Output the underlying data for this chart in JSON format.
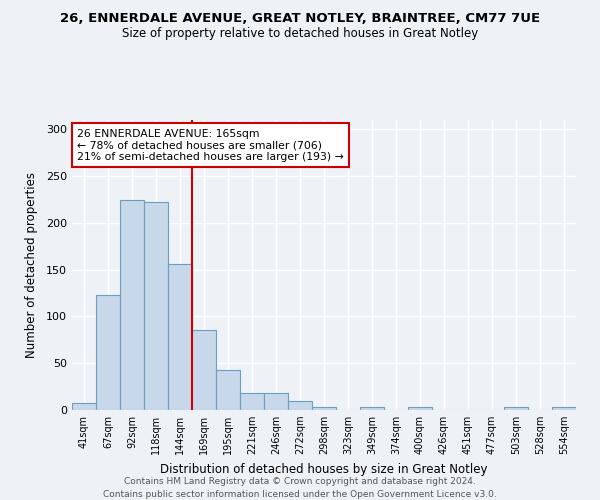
{
  "title_line1": "26, ENNERDALE AVENUE, GREAT NOTLEY, BRAINTREE, CM77 7UE",
  "title_line2": "Size of property relative to detached houses in Great Notley",
  "xlabel": "Distribution of detached houses by size in Great Notley",
  "ylabel": "Number of detached properties",
  "categories": [
    "41sqm",
    "67sqm",
    "92sqm",
    "118sqm",
    "144sqm",
    "169sqm",
    "195sqm",
    "221sqm",
    "246sqm",
    "272sqm",
    "298sqm",
    "323sqm",
    "349sqm",
    "374sqm",
    "400sqm",
    "426sqm",
    "451sqm",
    "477sqm",
    "503sqm",
    "528sqm",
    "554sqm"
  ],
  "values": [
    7,
    123,
    224,
    222,
    156,
    86,
    43,
    18,
    18,
    10,
    3,
    0,
    3,
    0,
    3,
    0,
    0,
    0,
    3,
    0,
    3
  ],
  "bar_color": "#c8d8eb",
  "bar_edge_color": "#6a9fc0",
  "vline_x_index": 4.5,
  "vline_color": "#cc0000",
  "annotation_text": "26 ENNERDALE AVENUE: 165sqm\n← 78% of detached houses are smaller (706)\n21% of semi-detached houses are larger (193) →",
  "annotation_box_color": "white",
  "annotation_box_edge_color": "#cc0000",
  "ylim": [
    0,
    310
  ],
  "yticks": [
    0,
    50,
    100,
    150,
    200,
    250,
    300
  ],
  "bg_color": "#eef2f7",
  "grid_color": "white",
  "footer_line1": "Contains HM Land Registry data © Crown copyright and database right 2024.",
  "footer_line2": "Contains public sector information licensed under the Open Government Licence v3.0."
}
